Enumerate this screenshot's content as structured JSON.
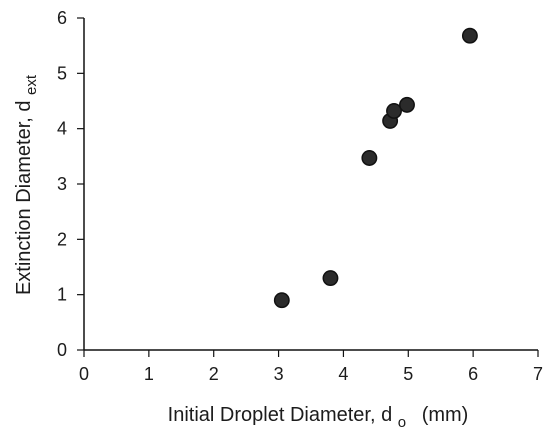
{
  "chart_data": {
    "type": "scatter",
    "xlabel": {
      "main": "Initial Droplet Diameter, d",
      "subscript": "o",
      "suffix": "(mm)"
    },
    "ylabel": {
      "main": "Extinction Diameter, d",
      "subscript": "ext"
    },
    "xlim": [
      0,
      7
    ],
    "ylim": [
      0,
      6
    ],
    "xticks": [
      "0",
      "1",
      "2",
      "3",
      "4",
      "5",
      "6",
      "7"
    ],
    "yticks": [
      "0",
      "1",
      "2",
      "3",
      "4",
      "5",
      "6"
    ],
    "points": [
      {
        "x": 3.05,
        "y": 0.9
      },
      {
        "x": 3.8,
        "y": 1.3
      },
      {
        "x": 4.4,
        "y": 3.47
      },
      {
        "x": 4.72,
        "y": 4.14
      },
      {
        "x": 4.78,
        "y": 4.32
      },
      {
        "x": 4.98,
        "y": 4.43
      },
      {
        "x": 5.95,
        "y": 5.68
      }
    ],
    "grid": false,
    "legend": "none",
    "colors": {
      "marker": "#2b2b2b",
      "axis": "#111111",
      "text": "#1c1c1c"
    }
  }
}
